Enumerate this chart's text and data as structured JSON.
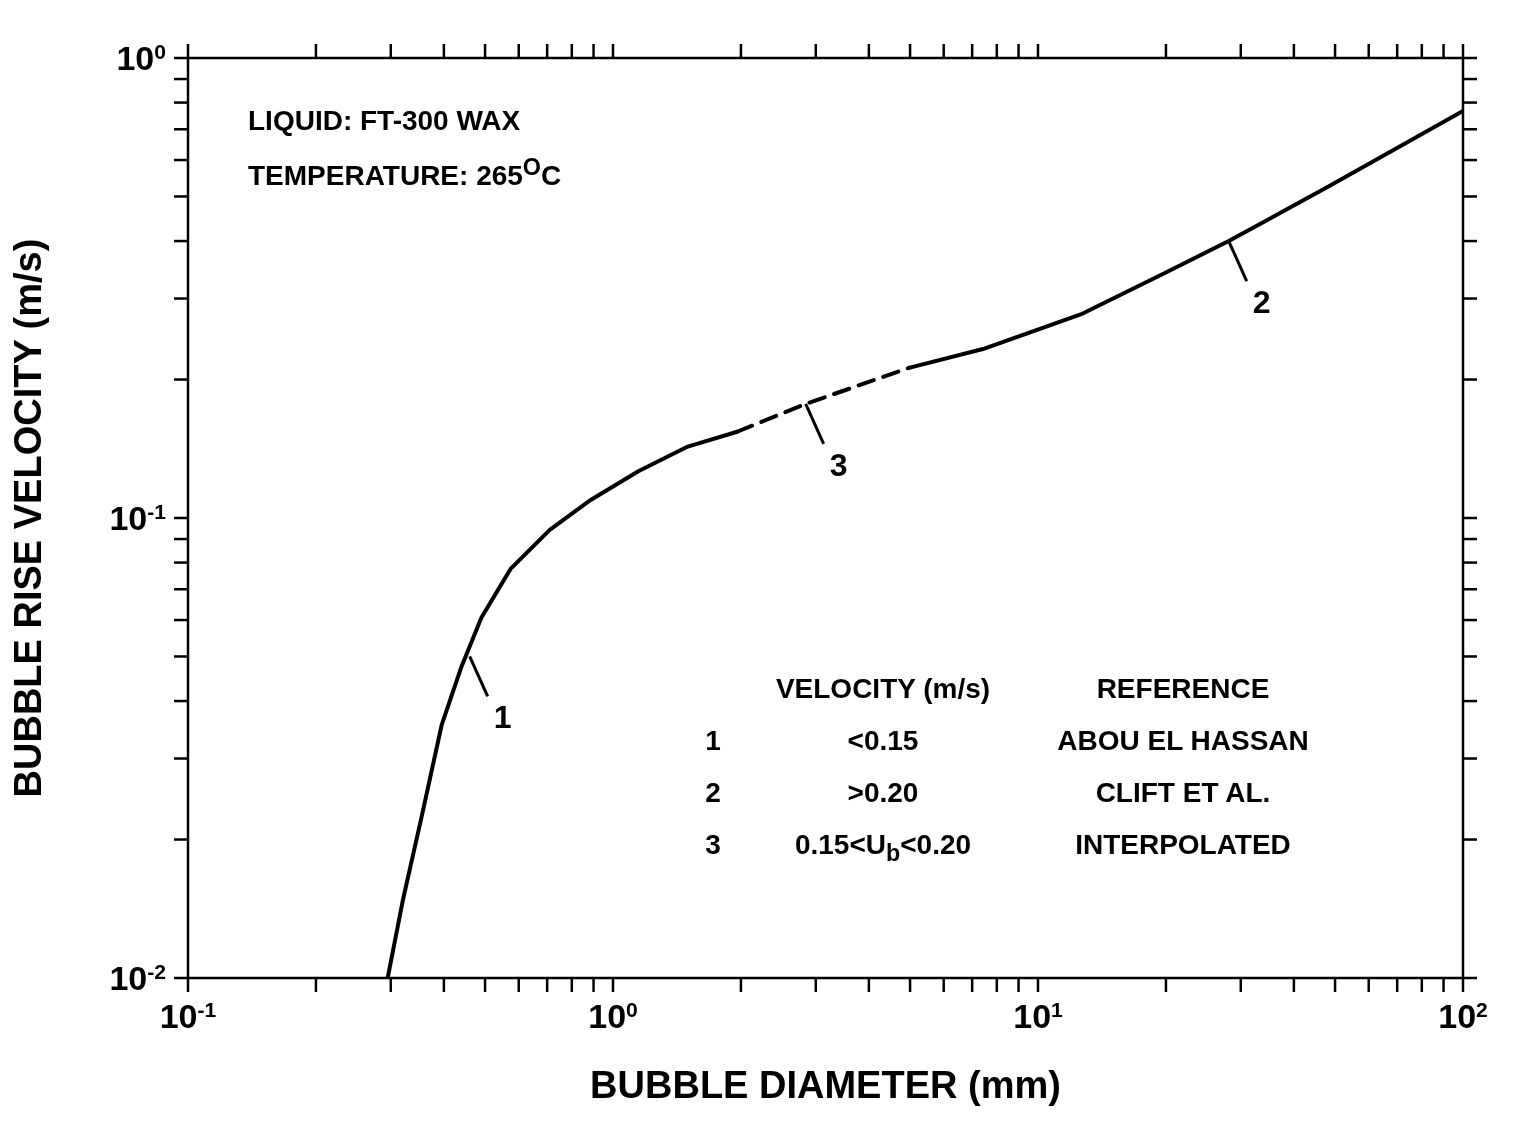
{
  "chart_data": {
    "type": "line",
    "xlabel": "BUBBLE DIAMETER (mm)",
    "ylabel": "BUBBLE RISE VELOCITY (m/s)",
    "log": "xy",
    "marker": "none",
    "xlim": [
      0.1,
      100
    ],
    "ylim": [
      0.01,
      1
    ],
    "xticks": [
      {
        "value": 0.1,
        "label": "10$^{-1}$"
      },
      {
        "value": 0.2,
        "label": null
      },
      {
        "value": 0.3,
        "label": null
      },
      {
        "value": 0.4,
        "label": null
      },
      {
        "value": 0.5,
        "label": null
      },
      {
        "value": 0.6,
        "label": null
      },
      {
        "value": 0.7,
        "label": null
      },
      {
        "value": 0.8,
        "label": null
      },
      {
        "value": 0.9,
        "label": null
      },
      {
        "value": 1,
        "label": "10$^{0}$"
      },
      {
        "value": 2,
        "label": null
      },
      {
        "value": 3,
        "label": null
      },
      {
        "value": 4,
        "label": null
      },
      {
        "value": 5,
        "label": null
      },
      {
        "value": 6,
        "label": null
      },
      {
        "value": 7,
        "label": null
      },
      {
        "value": 8,
        "label": null
      },
      {
        "value": 9,
        "label": null
      },
      {
        "value": 10,
        "label": "10$^{1}$"
      },
      {
        "value": 20,
        "label": null
      },
      {
        "value": 30,
        "label": null
      },
      {
        "value": 40,
        "label": null
      },
      {
        "value": 50,
        "label": null
      },
      {
        "value": 60,
        "label": null
      },
      {
        "value": 70,
        "label": null
      },
      {
        "value": 80,
        "label": null
      },
      {
        "value": 90,
        "label": null
      },
      {
        "value": 100,
        "label": "10$^{2}$"
      }
    ],
    "yticks": [
      {
        "value": 0.01,
        "label": "10$^{-2}$"
      },
      {
        "value": 0.02,
        "label": null
      },
      {
        "value": 0.03,
        "label": null
      },
      {
        "value": 0.04,
        "label": null
      },
      {
        "value": 0.05,
        "label": null
      },
      {
        "value": 0.06,
        "label": null
      },
      {
        "value": 0.07,
        "label": null
      },
      {
        "value": 0.08,
        "label": null
      },
      {
        "value": 0.09,
        "label": null
      },
      {
        "value": 0.1,
        "label": "10$^{-1}$"
      },
      {
        "value": 0.2,
        "label": null
      },
      {
        "value": 0.3,
        "label": null
      },
      {
        "value": 0.4,
        "label": null
      },
      {
        "value": 0.5,
        "label": null
      },
      {
        "value": 0.6,
        "label": null
      },
      {
        "value": 0.7,
        "label": null
      },
      {
        "value": 0.8,
        "label": null
      },
      {
        "value": 0.9,
        "label": null
      },
      {
        "value": 1,
        "label": "10$^{0}$"
      }
    ],
    "series": [
      {
        "color": "#000000",
        "line_style": "solid",
        "x": [
          0.295,
          0.32,
          0.356,
          0.395,
          0.44,
          0.49,
          0.574,
          0.71,
          0.88,
          1.15,
          1.5,
          1.96
        ],
        "values": [
          0.01,
          0.0147,
          0.0228,
          0.0354,
          0.0475,
          0.0607,
          0.0775,
          0.0942,
          0.109,
          0.1265,
          0.143,
          0.154
        ]
      },
      {
        "color": "#000000",
        "line_style": "dashed",
        "x": [
          1.96,
          2.84,
          4.97
        ],
        "values": [
          0.154,
          0.177,
          0.212
        ]
      },
      {
        "color": "#000000",
        "line_style": "solid",
        "x": [
          4.97,
          7.42,
          12.6,
          19.4,
          28.1,
          48,
          100
        ],
        "values": [
          0.212,
          0.233,
          0.277,
          0.337,
          0.4,
          0.524,
          0.767
        ]
      }
    ],
    "annotations": [
      "LIQUID: FT-300 WAX",
      "TEMPERATURE: 265$^{O}$C",
      {
        "text": "1",
        "x": 0.46,
        "y": 0.05
      },
      {
        "text": "2",
        "x": 28.1,
        "y": 0.4
      },
      {
        "text": "3",
        "x": 2.84,
        "y": 0.177
      },
      "VELOCITY (m/s)",
      "REFERENCE",
      "1",
      "<0.15",
      "ABOU EL HASSAN",
      "2",
      ">0.20",
      "CLIFT ET AL.",
      "3",
      "0.15<U$_{b}$<0.20",
      "INTERPOLATED"
    ]
  }
}
